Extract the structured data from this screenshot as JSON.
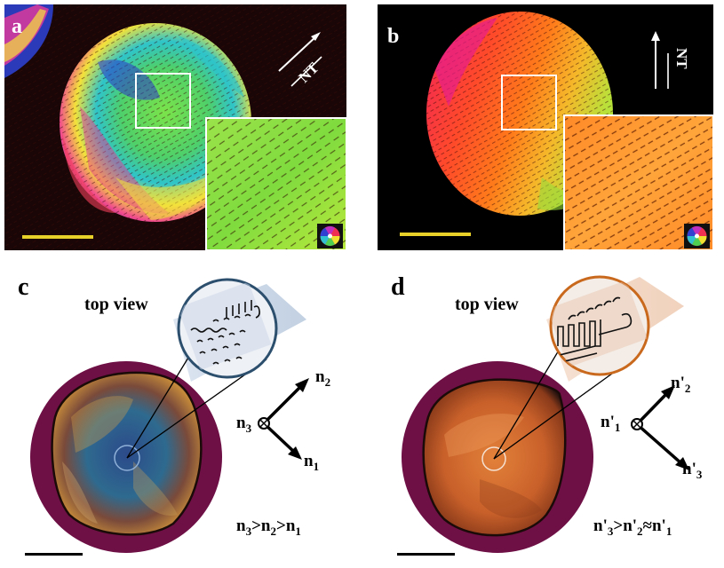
{
  "panels": {
    "a": {
      "label": "a",
      "axis_label": "NT"
    },
    "b": {
      "label": "b",
      "axis_label": "NT"
    },
    "c": {
      "label": "c",
      "view_label": "top view",
      "axis_n2": "n",
      "axis_n2_sub": "2",
      "axis_n3": "n",
      "axis_n3_sub": "3",
      "axis_n1": "n",
      "axis_n1_sub": "1",
      "relation": {
        "p1": "n",
        "s1": "3",
        "op1": ">",
        "p2": "n",
        "s2": "2",
        "op2": ">",
        "p3": "n",
        "s3": "1"
      }
    },
    "d": {
      "label": "d",
      "view_label": "top view",
      "axis_n2": "n'",
      "axis_n2_sub": "2",
      "axis_n1": "n'",
      "axis_n1_sub": "1",
      "axis_n3": "n'",
      "axis_n3_sub": "3",
      "relation": {
        "p1": "n'",
        "s1": "3",
        "op1": ">",
        "p2": "n'",
        "s2": "2",
        "op2": "≈",
        "p3": "n'",
        "s3": "1"
      }
    }
  },
  "colors": {
    "scale_bar_yellow": "#e8d22a",
    "inset_border": "#ffffff",
    "ring_maroon": "#6e0f45",
    "zoom_circle_c": "#2c4f6e",
    "zoom_circle_d": "#c9691d"
  }
}
